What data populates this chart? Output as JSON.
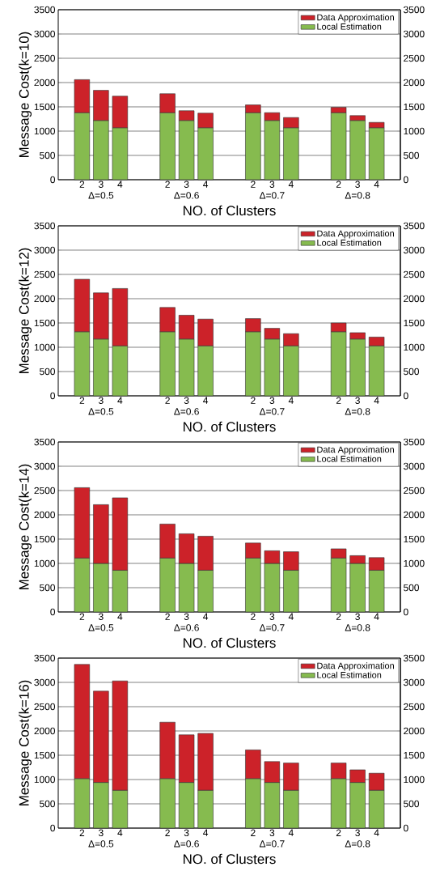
{
  "chart_data": [
    {
      "type": "bar",
      "stacked": true,
      "ylabel": "Message Cost(k=10)",
      "xlabel": "NO. of Clusters",
      "categories": [
        "2",
        "3",
        "4",
        "2",
        "3",
        "4",
        "2",
        "3",
        "4",
        "2",
        "3",
        "4"
      ],
      "annotations": [
        "Δ=0.5",
        "Δ=0.6",
        "Δ=0.7",
        "Δ=0.8"
      ],
      "legend": "top right",
      "grid": "y",
      "ylim": [
        0,
        3500
      ],
      "yticks": [
        0,
        500,
        1000,
        1500,
        2000,
        2500,
        3000,
        3500
      ],
      "y2lim": [
        0,
        3500
      ],
      "y2ticks": [
        0,
        500,
        1000,
        1500,
        2000,
        2500,
        3000,
        3500
      ],
      "series": [
        {
          "name": "Local Estimation",
          "color": "#86bb4f",
          "values": [
            1380,
            1220,
            1070,
            1380,
            1220,
            1070,
            1380,
            1220,
            1070,
            1380,
            1220,
            1070
          ]
        },
        {
          "name": "Data Approximation",
          "color": "#cc2229",
          "values": [
            680,
            620,
            650,
            390,
            200,
            300,
            160,
            160,
            210,
            110,
            100,
            110
          ]
        }
      ]
    },
    {
      "type": "bar",
      "stacked": true,
      "ylabel": "Message Cost(k=12)",
      "xlabel": "NO. of Clusters",
      "categories": [
        "2",
        "3",
        "4",
        "2",
        "3",
        "4",
        "2",
        "3",
        "4",
        "2",
        "3",
        "4"
      ],
      "annotations": [
        "Δ=0.5",
        "Δ=0.6",
        "Δ=0.7",
        "Δ=0.8"
      ],
      "legend": "top right",
      "grid": "y",
      "ylim": [
        0,
        3500
      ],
      "yticks": [
        0,
        500,
        1000,
        1500,
        2000,
        2500,
        3000,
        3500
      ],
      "y2lim": [
        0,
        3500
      ],
      "y2ticks": [
        0,
        500,
        1000,
        1500,
        2000,
        2500,
        3000,
        3500
      ],
      "series": [
        {
          "name": "Local Estimation",
          "color": "#86bb4f",
          "values": [
            1320,
            1170,
            1030,
            1320,
            1170,
            1030,
            1320,
            1170,
            1030,
            1320,
            1170,
            1030
          ]
        },
        {
          "name": "Data Approximation",
          "color": "#cc2229",
          "values": [
            1080,
            950,
            1180,
            500,
            490,
            550,
            270,
            220,
            250,
            180,
            130,
            180
          ]
        }
      ]
    },
    {
      "type": "bar",
      "stacked": true,
      "ylabel": "Message Cost(k=14)",
      "xlabel": "NO. of Clusters",
      "categories": [
        "2",
        "3",
        "4",
        "2",
        "3",
        "4",
        "2",
        "3",
        "4",
        "2",
        "3",
        "4"
      ],
      "annotations": [
        "Δ=0.5",
        "Δ=0.6",
        "Δ=0.7",
        "Δ=0.8"
      ],
      "legend": "top right",
      "grid": "y",
      "ylim": [
        0,
        3500
      ],
      "yticks": [
        0,
        500,
        1000,
        1500,
        2000,
        2500,
        3000,
        3500
      ],
      "y2lim": [
        0,
        3500
      ],
      "y2ticks": [
        0,
        500,
        1000,
        1500,
        2000,
        2500,
        3000,
        3500
      ],
      "series": [
        {
          "name": "Local Estimation",
          "color": "#86bb4f",
          "values": [
            1110,
            1000,
            860,
            1110,
            1000,
            860,
            1110,
            1000,
            860,
            1110,
            1000,
            860
          ]
        },
        {
          "name": "Data Approximation",
          "color": "#cc2229",
          "values": [
            1450,
            1210,
            1490,
            700,
            610,
            700,
            310,
            260,
            380,
            190,
            160,
            260
          ]
        }
      ]
    },
    {
      "type": "bar",
      "stacked": true,
      "ylabel": "Message Cost(k=16)",
      "xlabel": "NO. of Clusters",
      "categories": [
        "2",
        "3",
        "4",
        "2",
        "3",
        "4",
        "2",
        "3",
        "4",
        "2",
        "3",
        "4"
      ],
      "annotations": [
        "Δ=0.5",
        "Δ=0.6",
        "Δ=0.7",
        "Δ=0.8"
      ],
      "legend": "top right",
      "grid": "y",
      "ylim": [
        0,
        3500
      ],
      "yticks": [
        0,
        500,
        1000,
        1500,
        2000,
        2500,
        3000,
        3500
      ],
      "y2lim": [
        0,
        3500
      ],
      "y2ticks": [
        0,
        500,
        1000,
        1500,
        2000,
        2500,
        3000,
        3500
      ],
      "series": [
        {
          "name": "Local Estimation",
          "color": "#86bb4f",
          "values": [
            1020,
            940,
            780,
            1020,
            940,
            780,
            1020,
            940,
            780,
            1020,
            940,
            780
          ]
        },
        {
          "name": "Data Approximation",
          "color": "#cc2229",
          "values": [
            2350,
            1880,
            2250,
            1160,
            980,
            1170,
            590,
            430,
            560,
            320,
            260,
            350
          ]
        }
      ]
    }
  ]
}
